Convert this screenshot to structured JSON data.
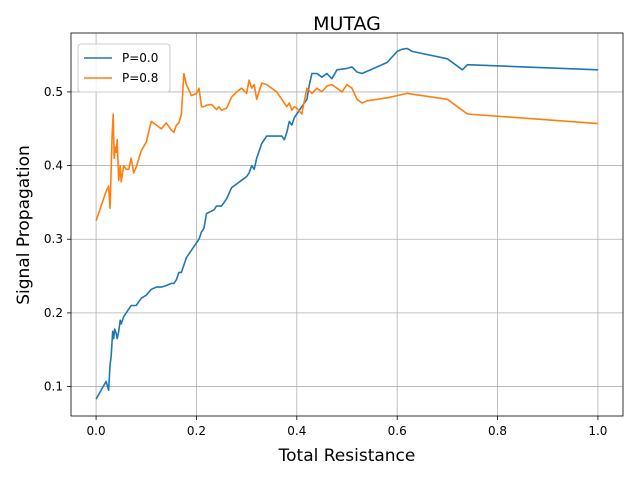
{
  "chart_data": {
    "type": "line",
    "title": "MUTAG",
    "xlabel": "Total Resistance",
    "ylabel": "Signal Propagation",
    "xlim": [
      -0.05,
      1.05
    ],
    "ylim": [
      0.06,
      0.58
    ],
    "xticks": [
      0.0,
      0.2,
      0.4,
      0.6,
      0.8,
      1.0
    ],
    "xtick_labels": [
      "0.0",
      "0.2",
      "0.4",
      "0.6",
      "0.8",
      "1.0"
    ],
    "yticks": [
      0.1,
      0.2,
      0.3,
      0.4,
      0.5
    ],
    "ytick_labels": [
      "0.1",
      "0.2",
      "0.3",
      "0.4",
      "0.5"
    ],
    "grid": true,
    "legend_position": "top-left",
    "series": [
      {
        "name": "P=0.0",
        "color": "#1f77b4",
        "x": [
          0.0,
          0.01,
          0.02,
          0.025,
          0.028,
          0.03,
          0.033,
          0.035,
          0.037,
          0.04,
          0.042,
          0.045,
          0.048,
          0.05,
          0.055,
          0.06,
          0.065,
          0.07,
          0.075,
          0.08,
          0.085,
          0.09,
          0.1,
          0.11,
          0.12,
          0.13,
          0.14,
          0.15,
          0.155,
          0.16,
          0.165,
          0.17,
          0.175,
          0.18,
          0.19,
          0.195,
          0.2,
          0.205,
          0.21,
          0.215,
          0.22,
          0.23,
          0.235,
          0.24,
          0.25,
          0.255,
          0.26,
          0.27,
          0.28,
          0.29,
          0.3,
          0.305,
          0.31,
          0.315,
          0.32,
          0.33,
          0.34,
          0.35,
          0.36,
          0.37,
          0.375,
          0.38,
          0.385,
          0.39,
          0.395,
          0.4,
          0.41,
          0.42,
          0.425,
          0.43,
          0.44,
          0.45,
          0.46,
          0.47,
          0.48,
          0.5,
          0.51,
          0.52,
          0.53,
          0.58,
          0.6,
          0.61,
          0.62,
          0.63,
          0.7,
          0.73,
          0.74,
          1.0
        ],
        "y": [
          0.083,
          0.095,
          0.107,
          0.095,
          0.13,
          0.14,
          0.175,
          0.165,
          0.178,
          0.172,
          0.165,
          0.175,
          0.19,
          0.185,
          0.195,
          0.2,
          0.205,
          0.21,
          0.21,
          0.21,
          0.215,
          0.22,
          0.224,
          0.232,
          0.235,
          0.235,
          0.237,
          0.24,
          0.24,
          0.245,
          0.255,
          0.255,
          0.265,
          0.275,
          0.285,
          0.29,
          0.295,
          0.3,
          0.31,
          0.315,
          0.335,
          0.338,
          0.34,
          0.345,
          0.345,
          0.35,
          0.355,
          0.37,
          0.375,
          0.38,
          0.385,
          0.39,
          0.4,
          0.395,
          0.41,
          0.43,
          0.44,
          0.44,
          0.44,
          0.44,
          0.435,
          0.445,
          0.46,
          0.455,
          0.465,
          0.47,
          0.48,
          0.49,
          0.51,
          0.525,
          0.525,
          0.52,
          0.525,
          0.518,
          0.53,
          0.532,
          0.534,
          0.527,
          0.525,
          0.54,
          0.555,
          0.558,
          0.559,
          0.555,
          0.545,
          0.53,
          0.537,
          0.53
        ]
      },
      {
        "name": "P=0.8",
        "color": "#ff7f0e",
        "x": [
          0.0,
          0.01,
          0.02,
          0.025,
          0.028,
          0.032,
          0.034,
          0.036,
          0.038,
          0.04,
          0.042,
          0.045,
          0.048,
          0.05,
          0.055,
          0.06,
          0.065,
          0.07,
          0.075,
          0.08,
          0.09,
          0.1,
          0.11,
          0.12,
          0.13,
          0.14,
          0.15,
          0.155,
          0.16,
          0.165,
          0.17,
          0.175,
          0.18,
          0.19,
          0.2,
          0.205,
          0.21,
          0.215,
          0.22,
          0.23,
          0.24,
          0.245,
          0.25,
          0.26,
          0.27,
          0.28,
          0.29,
          0.3,
          0.305,
          0.31,
          0.315,
          0.32,
          0.33,
          0.34,
          0.35,
          0.36,
          0.37,
          0.38,
          0.385,
          0.39,
          0.395,
          0.4,
          0.41,
          0.42,
          0.43,
          0.44,
          0.45,
          0.46,
          0.47,
          0.48,
          0.49,
          0.5,
          0.51,
          0.52,
          0.53,
          0.54,
          0.56,
          0.58,
          0.6,
          0.62,
          0.7,
          0.73,
          0.74,
          1.0
        ],
        "y": [
          0.325,
          0.345,
          0.365,
          0.372,
          0.342,
          0.44,
          0.47,
          0.41,
          0.425,
          0.418,
          0.435,
          0.38,
          0.4,
          0.378,
          0.4,
          0.395,
          0.395,
          0.41,
          0.39,
          0.398,
          0.42,
          0.432,
          0.46,
          0.455,
          0.45,
          0.458,
          0.448,
          0.445,
          0.455,
          0.458,
          0.47,
          0.525,
          0.51,
          0.495,
          0.498,
          0.505,
          0.48,
          0.48,
          0.482,
          0.483,
          0.476,
          0.48,
          0.475,
          0.478,
          0.493,
          0.5,
          0.505,
          0.498,
          0.516,
          0.505,
          0.51,
          0.49,
          0.512,
          0.51,
          0.505,
          0.5,
          0.49,
          0.48,
          0.485,
          0.475,
          0.48,
          0.478,
          0.47,
          0.505,
          0.498,
          0.505,
          0.5,
          0.508,
          0.51,
          0.505,
          0.5,
          0.51,
          0.505,
          0.49,
          0.485,
          0.488,
          0.49,
          0.492,
          0.495,
          0.498,
          0.49,
          0.475,
          0.47,
          0.457
        ]
      }
    ]
  }
}
